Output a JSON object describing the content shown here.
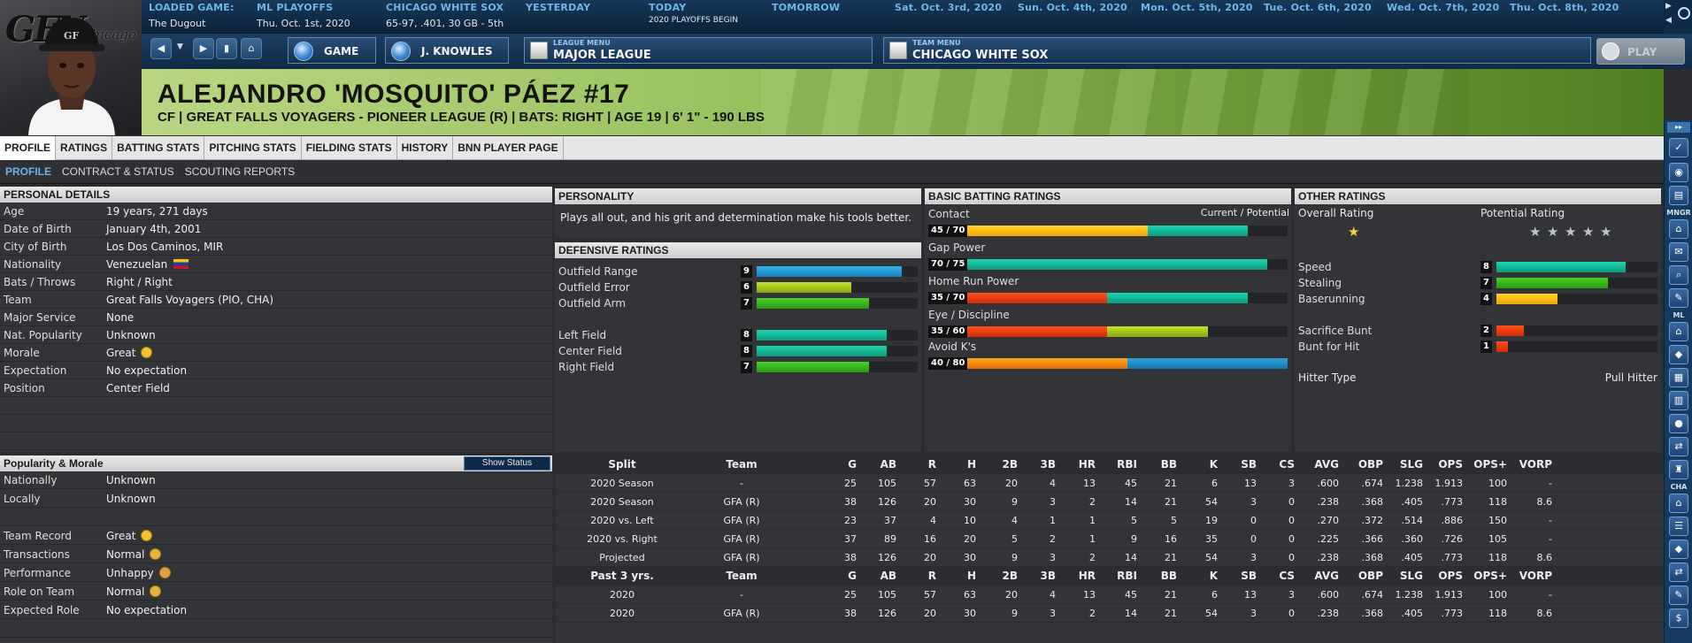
{
  "topbar": {
    "loaded": {
      "label": "LOADED GAME:",
      "value": "The Dugout"
    },
    "playoffs": {
      "label": "ML PLAYOFFS",
      "value": "Thu. Oct. 1st, 2020"
    },
    "team": {
      "label": "CHICAGO WHITE SOX",
      "value": "65-97, .401, 30 GB - 5th"
    },
    "yesterday": {
      "label": "YESTERDAY"
    },
    "today": {
      "label": "TODAY",
      "value": "2020 PLAYOFFS BEGIN"
    },
    "tomorrow": {
      "label": "TOMORROW"
    },
    "days": [
      "Sat. Oct. 3rd, 2020",
      "Sun. Oct. 4th, 2020",
      "Mon. Oct. 5th, 2020",
      "Tue. Oct. 6th, 2020",
      "Wed. Oct. 7th, 2020",
      "Thu. Oct. 8th, 2020"
    ]
  },
  "logo": {
    "mark": "GFV",
    "city": "Chicago"
  },
  "nav": {
    "game": "GAME",
    "manager": "J. KNOWLES",
    "league_cap": "LEAGUE MENU",
    "league": "MAJOR LEAGUE",
    "team_cap": "TEAM MENU",
    "team": "CHICAGO WHITE SOX",
    "play": "PLAY"
  },
  "player": {
    "name": "ALEJANDRO 'MOSQUITO' PÁEZ  #17",
    "sub": "CF | GREAT FALLS VOYAGERS - PIONEER LEAGUE (R) | BATS: RIGHT | AGE 19 | 6' 1\" - 190 LBS"
  },
  "tabs1": [
    "PROFILE",
    "RATINGS",
    "BATTING STATS",
    "PITCHING STATS",
    "FIELDING STATS",
    "HISTORY",
    "BNN PLAYER PAGE"
  ],
  "tabs2": [
    "PROFILE",
    "CONTRACT & STATUS",
    "SCOUTING REPORTS"
  ],
  "sidebar": {
    "mngr": "MNGR",
    "ml": "ML",
    "cha": "CHA"
  },
  "personal": {
    "title": "PERSONAL DETAILS",
    "rows": [
      {
        "k": "Age",
        "v": "19 years, 271 days"
      },
      {
        "k": "Date of Birth",
        "v": "January 4th, 2001"
      },
      {
        "k": "City of Birth",
        "v": "Los Dos Caminos, MIR"
      },
      {
        "k": "Nationality",
        "v": "Venezuelan"
      },
      {
        "k": "Bats / Throws",
        "v": "Right / Right"
      },
      {
        "k": "Team",
        "v": "Great Falls Voyagers (PIO, CHA)"
      },
      {
        "k": "Major Service",
        "v": "None"
      },
      {
        "k": "Nat. Popularity",
        "v": "Unknown"
      },
      {
        "k": "Morale",
        "v": "Great"
      },
      {
        "k": "Expectation",
        "v": "No expectation"
      },
      {
        "k": "Position",
        "v": "Center Field"
      }
    ]
  },
  "popularity": {
    "title": "Popularity & Morale",
    "button": "Show Status",
    "rows": [
      {
        "k": "Nationally",
        "v": "Unknown"
      },
      {
        "k": "Locally",
        "v": "Unknown"
      },
      {
        "k": "Team Record",
        "v": "Great"
      },
      {
        "k": "Transactions",
        "v": "Normal"
      },
      {
        "k": "Performance",
        "v": "Unhappy"
      },
      {
        "k": "Role on Team",
        "v": "Normal"
      },
      {
        "k": "Expected Role",
        "v": "No expectation"
      }
    ]
  },
  "personality": {
    "title": "PERSONALITY",
    "text": "Plays all out, and his grit and determination make his tools better."
  },
  "defensive": {
    "title": "DEFENSIVE RATINGS",
    "rows": [
      {
        "k": "Outfield Range",
        "v": "9",
        "level": 0.9
      },
      {
        "k": "Outfield Error",
        "v": "6",
        "level": 0.59
      },
      {
        "k": "Outfield Arm",
        "v": "7",
        "level": 0.7
      },
      {
        "k": "Left Field",
        "v": "8",
        "level": 0.81
      },
      {
        "k": "Center Field",
        "v": "8",
        "level": 0.81
      },
      {
        "k": "Right Field",
        "v": "7",
        "level": 0.7
      }
    ]
  },
  "batting": {
    "title": "BASIC BATTING RATINGS",
    "legend": "Current / Potential",
    "rows": [
      {
        "k": "Contact",
        "v": "45 / 70",
        "cur": 45,
        "pot": 70
      },
      {
        "k": "Gap Power",
        "v": "70 / 75",
        "cur": 70,
        "pot": 75
      },
      {
        "k": "Home Run Power",
        "v": "35 / 70",
        "cur": 35,
        "pot": 70
      },
      {
        "k": "Eye / Discipline",
        "v": "35 / 60",
        "cur": 35,
        "pot": 60
      },
      {
        "k": "Avoid K's",
        "v": "40 / 80",
        "cur": 40,
        "pot": 80
      }
    ]
  },
  "other": {
    "title": "OTHER RATINGS",
    "overall": "Overall Rating",
    "potential": "Potential Rating",
    "overall_stars": 1,
    "potential_stars": 5,
    "rows": [
      {
        "k": "Speed",
        "v": "8",
        "level": 0.8
      },
      {
        "k": "Stealing",
        "v": "7",
        "level": 0.69
      },
      {
        "k": "Baserunning",
        "v": "4",
        "level": 0.38
      },
      {
        "k": "Sacrifice Bunt",
        "v": "2",
        "level": 0.17
      },
      {
        "k": "Bunt for Hit",
        "v": "1",
        "level": 0.07
      }
    ],
    "hitter_type_label": "Hitter Type",
    "hitter_type": "Pull Hitter"
  },
  "stats": {
    "header": [
      "Split",
      "Team",
      "G",
      "AB",
      "R",
      "H",
      "2B",
      "3B",
      "HR",
      "RBI",
      "BB",
      "K",
      "SB",
      "CS",
      "AVG",
      "OBP",
      "SLG",
      "OPS",
      "OPS+",
      "VORP"
    ],
    "rows": [
      [
        "2020 Season",
        "-",
        "25",
        "105",
        "57",
        "63",
        "20",
        "4",
        "13",
        "45",
        "21",
        "6",
        "13",
        "3",
        ".600",
        ".674",
        "1.238",
        "1.913",
        "100",
        "-"
      ],
      [
        "2020 Season",
        "GFA (R)",
        "38",
        "126",
        "20",
        "30",
        "9",
        "3",
        "2",
        "14",
        "21",
        "54",
        "3",
        "0",
        ".238",
        ".368",
        ".405",
        ".773",
        "118",
        "8.6"
      ],
      [
        "2020 vs. Left",
        "GFA (R)",
        "23",
        "37",
        "4",
        "10",
        "4",
        "1",
        "1",
        "5",
        "5",
        "19",
        "0",
        "0",
        ".270",
        ".372",
        ".514",
        ".886",
        "150",
        "-"
      ],
      [
        "2020 vs. Right",
        "GFA (R)",
        "37",
        "89",
        "16",
        "20",
        "5",
        "2",
        "1",
        "9",
        "16",
        "35",
        "0",
        "0",
        ".225",
        ".366",
        ".360",
        ".726",
        "105",
        "-"
      ],
      [
        "Projected",
        "GFA (R)",
        "38",
        "126",
        "20",
        "30",
        "9",
        "3",
        "2",
        "14",
        "21",
        "54",
        "3",
        "0",
        ".238",
        ".368",
        ".405",
        ".773",
        "118",
        "8.6"
      ]
    ],
    "header2": [
      "Past 3 yrs.",
      "Team",
      "G",
      "AB",
      "R",
      "H",
      "2B",
      "3B",
      "HR",
      "RBI",
      "BB",
      "K",
      "SB",
      "CS",
      "AVG",
      "OBP",
      "SLG",
      "OPS",
      "OPS+",
      "VORP"
    ],
    "rows2": [
      [
        "2020",
        "-",
        "25",
        "105",
        "57",
        "63",
        "20",
        "4",
        "13",
        "45",
        "21",
        "6",
        "13",
        "3",
        ".600",
        ".674",
        "1.238",
        "1.913",
        "100",
        "-"
      ],
      [
        "2020",
        "GFA (R)",
        "38",
        "126",
        "20",
        "30",
        "9",
        "3",
        "2",
        "14",
        "21",
        "54",
        "3",
        "0",
        ".238",
        ".368",
        ".405",
        ".773",
        "118",
        "8.6"
      ]
    ]
  }
}
